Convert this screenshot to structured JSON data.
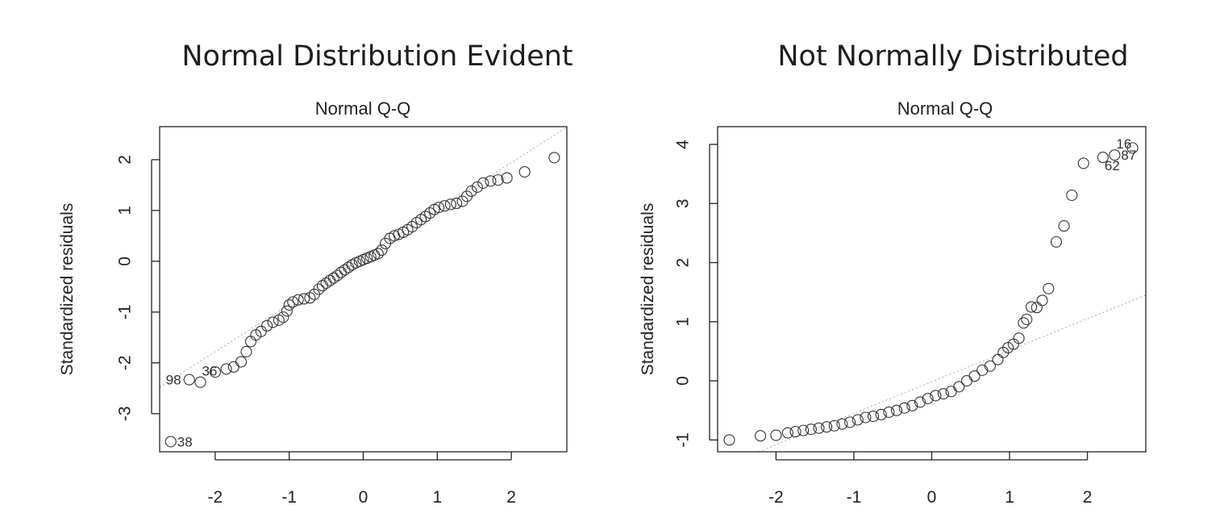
{
  "chart_data": [
    {
      "type": "scatter",
      "title": "Normal Distribution Evident",
      "subtitle": "Normal Q-Q",
      "xlabel": "",
      "ylabel": "Standardized residuals",
      "xlim": [
        -2.75,
        2.75
      ],
      "ylim": [
        -3.75,
        2.65
      ],
      "xticks": [
        -2,
        -1,
        0,
        1,
        2
      ],
      "yticks": [
        -3,
        -2,
        -1,
        0,
        1,
        2
      ],
      "grid": false,
      "reference_line": [
        [
          -2.75,
          -2.48
        ],
        [
          2.75,
          2.64
        ]
      ],
      "points": [
        [
          -2.6,
          -3.55
        ],
        [
          -2.35,
          -2.33
        ],
        [
          -2.2,
          -2.38
        ],
        [
          -2.0,
          -2.18
        ],
        [
          -1.85,
          -2.12
        ],
        [
          -1.75,
          -2.08
        ],
        [
          -1.65,
          -1.98
        ],
        [
          -1.58,
          -1.78
        ],
        [
          -1.52,
          -1.58
        ],
        [
          -1.45,
          -1.45
        ],
        [
          -1.38,
          -1.38
        ],
        [
          -1.3,
          -1.27
        ],
        [
          -1.22,
          -1.2
        ],
        [
          -1.14,
          -1.16
        ],
        [
          -1.08,
          -1.1
        ],
        [
          -1.03,
          -0.98
        ],
        [
          -1.0,
          -0.86
        ],
        [
          -0.95,
          -0.8
        ],
        [
          -0.88,
          -0.76
        ],
        [
          -0.8,
          -0.74
        ],
        [
          -0.72,
          -0.72
        ],
        [
          -0.66,
          -0.65
        ],
        [
          -0.6,
          -0.55
        ],
        [
          -0.55,
          -0.48
        ],
        [
          -0.5,
          -0.43
        ],
        [
          -0.45,
          -0.38
        ],
        [
          -0.4,
          -0.33
        ],
        [
          -0.35,
          -0.28
        ],
        [
          -0.3,
          -0.22
        ],
        [
          -0.25,
          -0.17
        ],
        [
          -0.2,
          -0.12
        ],
        [
          -0.15,
          -0.07
        ],
        [
          -0.1,
          -0.03
        ],
        [
          -0.05,
          0.0
        ],
        [
          0.0,
          0.03
        ],
        [
          0.05,
          0.06
        ],
        [
          0.1,
          0.09
        ],
        [
          0.15,
          0.12
        ],
        [
          0.2,
          0.15
        ],
        [
          0.25,
          0.22
        ],
        [
          0.3,
          0.35
        ],
        [
          0.36,
          0.45
        ],
        [
          0.42,
          0.5
        ],
        [
          0.48,
          0.53
        ],
        [
          0.54,
          0.57
        ],
        [
          0.6,
          0.62
        ],
        [
          0.66,
          0.68
        ],
        [
          0.72,
          0.76
        ],
        [
          0.78,
          0.82
        ],
        [
          0.84,
          0.88
        ],
        [
          0.9,
          0.95
        ],
        [
          0.96,
          1.02
        ],
        [
          1.02,
          1.06
        ],
        [
          1.1,
          1.09
        ],
        [
          1.18,
          1.12
        ],
        [
          1.26,
          1.14
        ],
        [
          1.34,
          1.18
        ],
        [
          1.4,
          1.28
        ],
        [
          1.46,
          1.38
        ],
        [
          1.54,
          1.46
        ],
        [
          1.62,
          1.54
        ],
        [
          1.72,
          1.58
        ],
        [
          1.82,
          1.6
        ],
        [
          1.94,
          1.64
        ],
        [
          2.18,
          1.76
        ],
        [
          2.58,
          2.04
        ]
      ],
      "annotations": [
        {
          "label": "38",
          "x": -2.6,
          "y": -3.55,
          "pos": "right"
        },
        {
          "label": "98",
          "x": -2.35,
          "y": -2.33,
          "pos": "left"
        },
        {
          "label": "36",
          "x": -2.2,
          "y": -2.38,
          "pos": "top"
        }
      ]
    },
    {
      "type": "scatter",
      "title": "Not Normally Distributed",
      "subtitle": "Normal Q-Q",
      "xlabel": "",
      "ylabel": "Standardized residuals",
      "xlim": [
        -2.75,
        2.75
      ],
      "ylim": [
        -1.2,
        4.3
      ],
      "xticks": [
        -2,
        -1,
        0,
        1,
        2
      ],
      "yticks": [
        -1,
        0,
        1,
        2,
        3,
        4
      ],
      "grid": false,
      "reference_line": [
        [
          -2.75,
          -1.48
        ],
        [
          2.75,
          1.45
        ]
      ],
      "points": [
        [
          -2.6,
          -1.0
        ],
        [
          -2.2,
          -0.93
        ],
        [
          -2.0,
          -0.92
        ],
        [
          -1.85,
          -0.88
        ],
        [
          -1.75,
          -0.86
        ],
        [
          -1.65,
          -0.84
        ],
        [
          -1.55,
          -0.82
        ],
        [
          -1.45,
          -0.8
        ],
        [
          -1.35,
          -0.78
        ],
        [
          -1.25,
          -0.76
        ],
        [
          -1.15,
          -0.73
        ],
        [
          -1.05,
          -0.7
        ],
        [
          -0.95,
          -0.66
        ],
        [
          -0.85,
          -0.62
        ],
        [
          -0.75,
          -0.6
        ],
        [
          -0.65,
          -0.57
        ],
        [
          -0.55,
          -0.53
        ],
        [
          -0.45,
          -0.5
        ],
        [
          -0.35,
          -0.46
        ],
        [
          -0.25,
          -0.42
        ],
        [
          -0.15,
          -0.36
        ],
        [
          -0.05,
          -0.3
        ],
        [
          0.05,
          -0.25
        ],
        [
          0.15,
          -0.22
        ],
        [
          0.25,
          -0.18
        ],
        [
          0.35,
          -0.1
        ],
        [
          0.45,
          0.0
        ],
        [
          0.55,
          0.08
        ],
        [
          0.65,
          0.18
        ],
        [
          0.75,
          0.25
        ],
        [
          0.85,
          0.36
        ],
        [
          0.92,
          0.48
        ],
        [
          0.98,
          0.56
        ],
        [
          1.05,
          0.62
        ],
        [
          1.12,
          0.72
        ],
        [
          1.18,
          0.98
        ],
        [
          1.22,
          1.04
        ],
        [
          1.28,
          1.25
        ],
        [
          1.35,
          1.24
        ],
        [
          1.42,
          1.36
        ],
        [
          1.5,
          1.56
        ],
        [
          1.6,
          2.35
        ],
        [
          1.7,
          2.62
        ],
        [
          1.8,
          3.14
        ],
        [
          1.95,
          3.68
        ],
        [
          2.2,
          3.78
        ],
        [
          2.35,
          3.82
        ],
        [
          2.58,
          3.94
        ]
      ],
      "annotations": [
        {
          "label": "16",
          "x": 2.35,
          "y": 3.82,
          "pos": "top"
        },
        {
          "label": "62",
          "x": 2.2,
          "y": 3.78,
          "pos": "bottom"
        },
        {
          "label": "87",
          "x": 2.35,
          "y": 3.82,
          "pos": "right"
        }
      ]
    }
  ]
}
